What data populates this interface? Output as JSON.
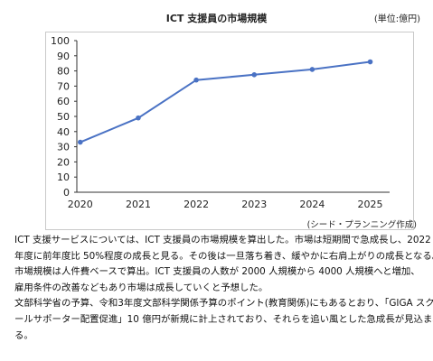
{
  "title": "ICT 支援員の市場規模",
  "unit": "(単位:億円)",
  "source": "(シード・プランニング作成)",
  "chart_data": {
    "type": "line",
    "title": "ICT 支援員の市場規模",
    "xlabel": "",
    "ylabel": "",
    "x": [
      "2020",
      "2021",
      "2022",
      "2023",
      "2024",
      "2025"
    ],
    "series": [
      {
        "values": [
          33,
          49,
          74,
          77.5,
          81,
          86
        ]
      }
    ],
    "ylim": [
      0,
      100
    ],
    "yticks": [
      "0",
      "10",
      "20",
      "30",
      "40",
      "50",
      "60",
      "70",
      "80",
      "90",
      "100"
    ],
    "grid": false,
    "legend": "none",
    "line_color": "#4a72c4"
  },
  "text_lines": [
    "ICT 支援サービスについては、ICT 支援員の市場規模を算出した。市場は短期間で急成長し、2022",
    "年度に前年度比 50%程度の成長と見る。その後は一旦落ち着き、緩やかに右肩上がりの成長となる。",
    "市場規模は人件費ベースで算出。ICT 支援員の人数が 2000 人規模から 4000 人規模へと増加、",
    "雇用条件の改善などもあり市場は成長していくと予想した。",
    "文部科学省の予算、令和3年度文部科学関係予算のポイント(教育関係)にもあるとおり、「GIGA スク",
    "ールサポーター配置促進」10 億円が新規に計上されており、それらを追い風とした急成長が見込まれ",
    "る。"
  ]
}
